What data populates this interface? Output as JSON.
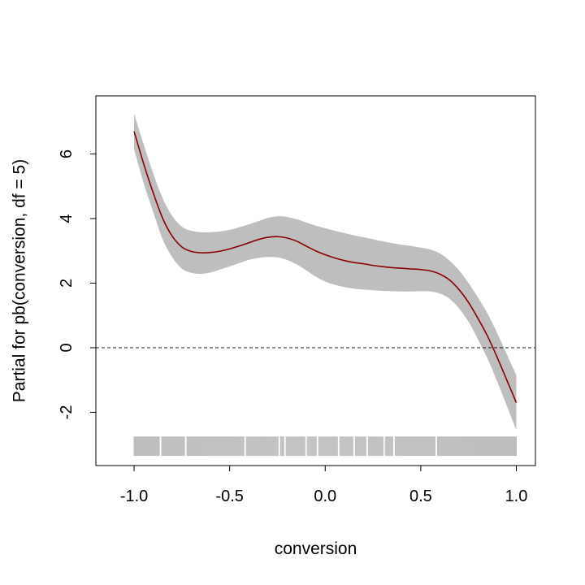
{
  "chart_data": {
    "type": "line",
    "title": "",
    "xlabel": "conversion",
    "ylabel": "Partial for pb(conversion, df = 5)",
    "xlim": [
      -1.2,
      1.1
    ],
    "ylim": [
      -3.65,
      7.8
    ],
    "x_ticks": [
      -1.0,
      -0.5,
      0.0,
      0.5,
      1.0
    ],
    "x_tick_labels": [
      "-1.0",
      "-0.5",
      "0.0",
      "0.5",
      "1.0"
    ],
    "y_ticks": [
      -2,
      0,
      2,
      4,
      6
    ],
    "y_tick_labels": [
      "-2",
      "0",
      "2",
      "4",
      "6"
    ],
    "grid": false,
    "reference_line": {
      "y": 0,
      "style": "dashed"
    },
    "colors": {
      "fit": "#8b0000",
      "band": "#bebebe",
      "rug": "#bebebe"
    },
    "series": [
      {
        "x": [
          -1.0,
          -0.95,
          -0.9,
          -0.85,
          -0.8,
          -0.75,
          -0.7,
          -0.65,
          -0.6,
          -0.55,
          -0.5,
          -0.45,
          -0.4,
          -0.35,
          -0.3,
          -0.25,
          -0.2,
          -0.15,
          -0.1,
          -0.05,
          0.0,
          0.05,
          0.1,
          0.15,
          0.2,
          0.25,
          0.3,
          0.35,
          0.4,
          0.45,
          0.5,
          0.55,
          0.6,
          0.65,
          0.7,
          0.75,
          0.8,
          0.85,
          0.9,
          0.95,
          1.0
        ],
        "fit": [
          6.7,
          5.7,
          4.8,
          4.0,
          3.45,
          3.12,
          2.98,
          2.94,
          2.95,
          2.99,
          3.06,
          3.15,
          3.25,
          3.35,
          3.42,
          3.44,
          3.4,
          3.3,
          3.15,
          3.0,
          2.88,
          2.78,
          2.7,
          2.64,
          2.6,
          2.55,
          2.51,
          2.48,
          2.46,
          2.44,
          2.42,
          2.38,
          2.28,
          2.1,
          1.8,
          1.4,
          0.9,
          0.35,
          -0.3,
          -1.0,
          -1.7
        ],
        "lower": [
          6.15,
          5.1,
          4.2,
          3.35,
          2.8,
          2.45,
          2.32,
          2.29,
          2.33,
          2.42,
          2.52,
          2.62,
          2.72,
          2.78,
          2.81,
          2.8,
          2.72,
          2.58,
          2.4,
          2.2,
          2.05,
          1.95,
          1.88,
          1.83,
          1.8,
          1.78,
          1.76,
          1.75,
          1.74,
          1.74,
          1.75,
          1.74,
          1.68,
          1.52,
          1.22,
          0.8,
          0.25,
          -0.35,
          -1.05,
          -1.8,
          -2.55
        ],
        "upper": [
          7.25,
          6.3,
          5.4,
          4.62,
          4.08,
          3.75,
          3.62,
          3.58,
          3.58,
          3.6,
          3.65,
          3.73,
          3.82,
          3.92,
          4.02,
          4.07,
          4.05,
          3.98,
          3.88,
          3.78,
          3.7,
          3.62,
          3.55,
          3.48,
          3.42,
          3.36,
          3.3,
          3.24,
          3.19,
          3.15,
          3.1,
          3.04,
          2.92,
          2.7,
          2.4,
          2.0,
          1.55,
          1.05,
          0.45,
          -0.2,
          -0.85
        ]
      }
    ],
    "rug": {
      "y_range": [
        -3.35,
        -2.75
      ],
      "x_range": [
        -1.0,
        1.0
      ],
      "gaps": [
        -0.86,
        -0.73,
        -0.42,
        -0.24,
        -0.21,
        -0.1,
        -0.04,
        0.07,
        0.15,
        0.22,
        0.31,
        0.36,
        0.58
      ]
    }
  }
}
